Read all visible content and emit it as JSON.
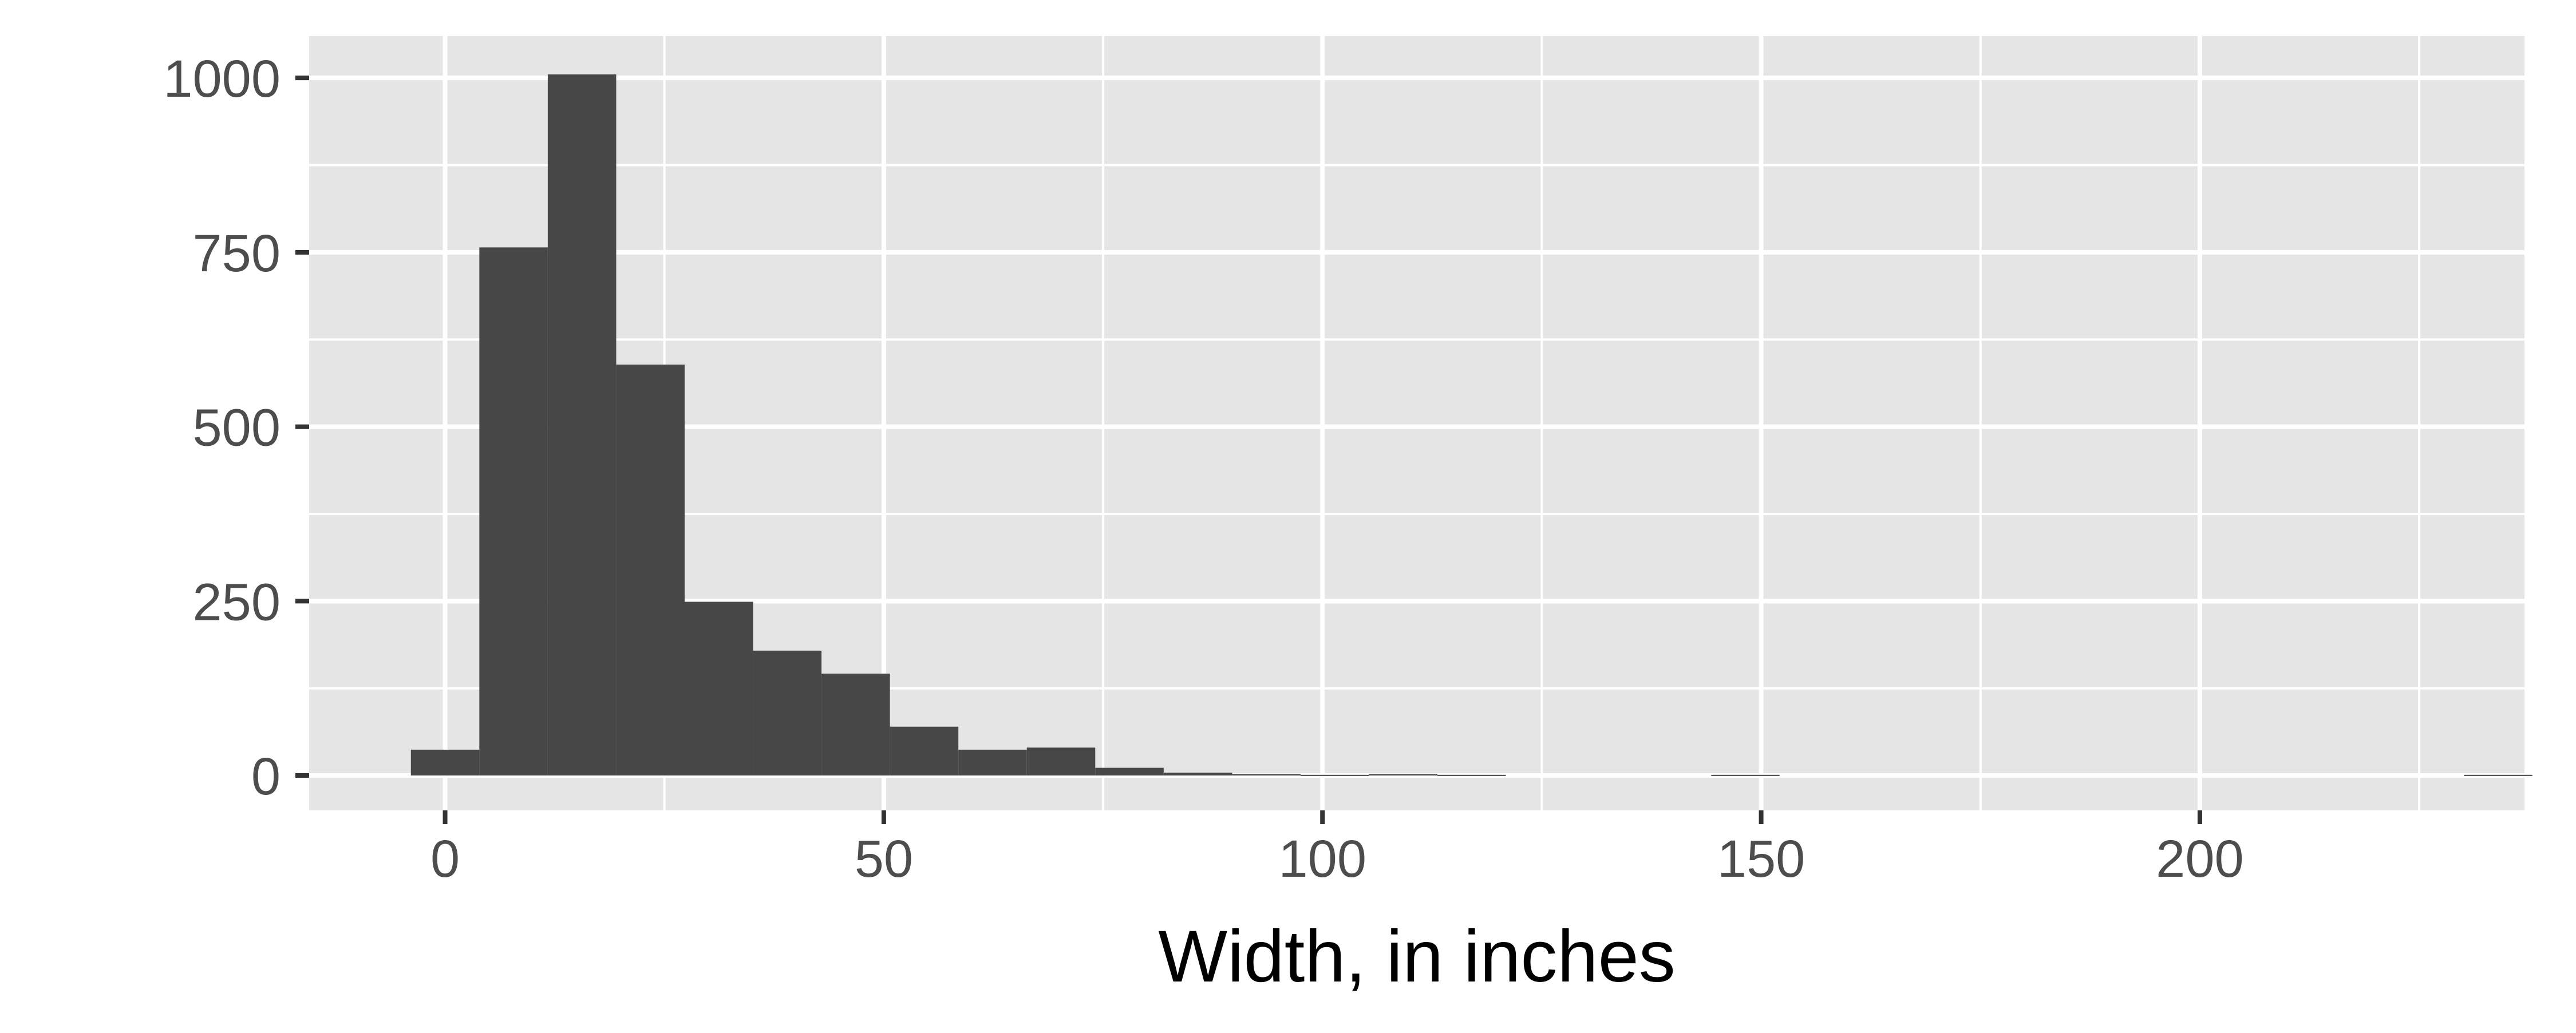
{
  "chart_data": {
    "type": "histogram",
    "title": "",
    "xlabel": "Width, in inches",
    "ylabel": "",
    "xlim": [
      -15.5,
      237
    ],
    "ylim": [
      -50,
      1060
    ],
    "x_ticks": [
      0,
      50,
      100,
      150,
      200
    ],
    "x_tick_labels": [
      "0",
      "50",
      "100",
      "150",
      "200"
    ],
    "x_minor_ticks": [
      25,
      75,
      125,
      175,
      225
    ],
    "y_ticks": [
      0,
      250,
      500,
      750,
      1000
    ],
    "y_tick_labels": [
      "0",
      "250",
      "500",
      "750",
      "1000"
    ],
    "y_minor_ticks": [
      125,
      375,
      625,
      875
    ],
    "grid": true,
    "bins": {
      "start": -3.9,
      "width": 7.8,
      "counts": [
        37,
        757,
        1005,
        589,
        249,
        179,
        146,
        70,
        37,
        40,
        11,
        4,
        2,
        1,
        2,
        1,
        0,
        0,
        0,
        1,
        0,
        0,
        0,
        0,
        0,
        0,
        0,
        0,
        0,
        0,
        1
      ]
    }
  },
  "colors": {
    "panel_background": "#e5e5e5",
    "grid_line": "#ffffff",
    "bar_fill": "#474747",
    "tick_text": "#4d4d4d",
    "axis_ticks": "#333333",
    "axis_title": "#000000"
  }
}
